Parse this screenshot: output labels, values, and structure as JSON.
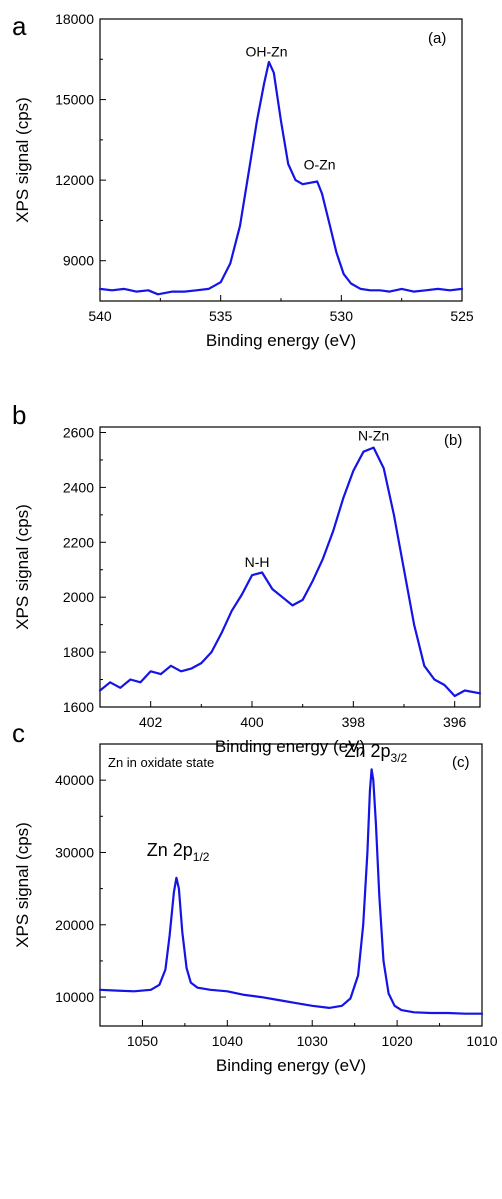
{
  "chart_data": [
    {
      "type": "line",
      "panel_letter": "a",
      "panel_tag": "(a)",
      "xlabel": "Binding energy (eV)",
      "ylabel": "XPS signal (cps)",
      "xlim": [
        540,
        525
      ],
      "ylim": [
        7500,
        18000
      ],
      "x_reversed": true,
      "xticks": [
        540,
        535,
        530,
        525
      ],
      "xtick_labels": [
        "540",
        "535",
        "530",
        "525"
      ],
      "yticks": [
        9000,
        12000,
        15000,
        18000
      ],
      "ytick_labels": [
        "9000",
        "12000",
        "15000",
        "18000"
      ],
      "color": "#1414e6",
      "annotations": [
        {
          "text": "OH-Zn",
          "x": 533.1,
          "y": 16600
        },
        {
          "text": "O-Zn",
          "x": 530.9,
          "y": 12400
        }
      ],
      "series": [
        {
          "x": [
            540,
            539.5,
            539,
            538.5,
            538,
            537.6,
            537,
            536.5,
            536,
            535.5,
            535,
            534.6,
            534.2,
            533.8,
            533.5,
            533.2,
            533,
            532.8,
            532.5,
            532.2,
            531.9,
            531.6,
            531.3,
            531,
            530.8,
            530.5,
            530.2,
            529.9,
            529.6,
            529.2,
            528.8,
            528.4,
            528,
            527.5,
            527,
            526.5,
            526,
            525.5,
            525
          ],
          "y": [
            7950,
            7900,
            7950,
            7850,
            7900,
            7750,
            7850,
            7850,
            7900,
            7950,
            8200,
            8900,
            10300,
            12500,
            14200,
            15600,
            16400,
            16000,
            14200,
            12600,
            12000,
            11850,
            11900,
            11950,
            11500,
            10400,
            9300,
            8500,
            8150,
            7950,
            7900,
            7900,
            7850,
            7950,
            7850,
            7900,
            7950,
            7900,
            7950
          ]
        }
      ]
    },
    {
      "type": "line",
      "panel_letter": "b",
      "panel_tag": "(b)",
      "xlabel": "Binding energy (eV)",
      "ylabel": "XPS signal (cps)",
      "xlim": [
        403,
        395.5
      ],
      "ylim": [
        1600,
        2620
      ],
      "x_reversed": true,
      "xticks": [
        402,
        400,
        398,
        396
      ],
      "xtick_labels": [
        "402",
        "400",
        "398",
        "396"
      ],
      "yticks": [
        1600,
        1800,
        2000,
        2200,
        2400,
        2600
      ],
      "ytick_labels": [
        "1600",
        "1800",
        "2000",
        "2200",
        "2400",
        "2600"
      ],
      "color": "#1414e6",
      "annotations": [
        {
          "text": "N-H",
          "x": 399.9,
          "y": 2110
        },
        {
          "text": "N-Zn",
          "x": 397.6,
          "y": 2570
        }
      ],
      "series": [
        {
          "x": [
            403,
            402.8,
            402.6,
            402.4,
            402.2,
            402,
            401.8,
            401.6,
            401.4,
            401.2,
            401,
            400.8,
            400.6,
            400.4,
            400.2,
            400,
            399.8,
            399.6,
            399.4,
            399.2,
            399,
            398.8,
            398.6,
            398.4,
            398.2,
            398,
            397.8,
            397.6,
            397.4,
            397.2,
            397,
            396.8,
            396.6,
            396.4,
            396.2,
            396,
            395.8,
            395.5
          ],
          "y": [
            1660,
            1690,
            1670,
            1700,
            1690,
            1730,
            1720,
            1750,
            1730,
            1740,
            1760,
            1800,
            1870,
            1950,
            2010,
            2080,
            2090,
            2030,
            2000,
            1970,
            1990,
            2060,
            2140,
            2240,
            2360,
            2460,
            2530,
            2545,
            2470,
            2300,
            2100,
            1900,
            1750,
            1700,
            1680,
            1640,
            1660,
            1650
          ]
        }
      ]
    },
    {
      "type": "line",
      "panel_letter": "c",
      "panel_tag": "(c)",
      "note": "Zn in oxidate state",
      "xlabel": "Binding energy (eV)",
      "ylabel": "XPS signal (cps)",
      "xlim": [
        1055,
        1010
      ],
      "ylim": [
        6000,
        45000
      ],
      "x_reversed": true,
      "xticks": [
        1050,
        1040,
        1030,
        1020,
        1010
      ],
      "xtick_labels": [
        "1050",
        "1040",
        "1030",
        "1020",
        "1010"
      ],
      "yticks": [
        10000,
        20000,
        30000,
        40000
      ],
      "ytick_labels": [
        "10000",
        "20000",
        "30000",
        "40000"
      ],
      "color": "#1414e6",
      "annotations": [
        {
          "base": "Zn 2p",
          "sub": "1/2",
          "x": 1045.8,
          "y": 29500
        },
        {
          "base": "Zn 2p",
          "sub": "3/2",
          "x": 1022.5,
          "y": 43200
        }
      ],
      "series": [
        {
          "x": [
            1055,
            1053,
            1051,
            1049,
            1048,
            1047.3,
            1046.8,
            1046.3,
            1046,
            1045.7,
            1045.3,
            1044.8,
            1044.3,
            1043.5,
            1042,
            1040,
            1038,
            1036,
            1034,
            1032,
            1030,
            1028,
            1026.5,
            1025.5,
            1024.6,
            1024,
            1023.5,
            1023.2,
            1023,
            1022.8,
            1022.5,
            1022.1,
            1021.6,
            1021,
            1020.3,
            1019.5,
            1018,
            1016,
            1014,
            1012,
            1010
          ],
          "y": [
            11000,
            10900,
            10800,
            11000,
            11700,
            13800,
            18500,
            24500,
            26500,
            25000,
            19000,
            14000,
            12000,
            11300,
            11000,
            10800,
            10300,
            10000,
            9600,
            9200,
            8800,
            8500,
            8800,
            9800,
            13000,
            20000,
            30000,
            38500,
            41500,
            40000,
            34000,
            24000,
            15000,
            10500,
            8800,
            8200,
            7900,
            7800,
            7800,
            7700,
            7700
          ]
        }
      ]
    }
  ]
}
